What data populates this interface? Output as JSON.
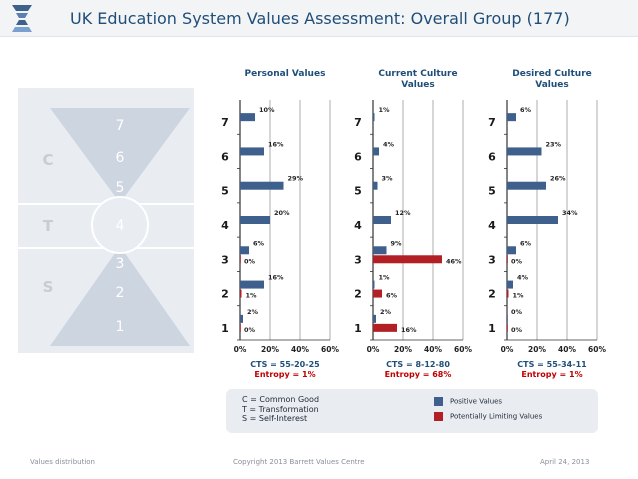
{
  "header": {
    "title": "UK Education System Values Assessment: Overall Group (177)"
  },
  "hourglass": {
    "letters": [
      {
        "text": "C"
      },
      {
        "text": "T"
      },
      {
        "text": "S"
      }
    ],
    "numbers": [
      "7",
      "6",
      "5",
      "4",
      "3",
      "2",
      "1"
    ]
  },
  "chart_data": [
    {
      "type": "bar",
      "title": "Personal Values",
      "categories": [
        "7",
        "6",
        "5",
        "4",
        "3",
        "2",
        "1"
      ],
      "series": [
        {
          "values": [
            10,
            16,
            29,
            20,
            6,
            16,
            2
          ]
        }
      ],
      "limiting": [
        null,
        null,
        null,
        null,
        0,
        1,
        0
      ],
      "xticks": [
        "0%",
        "20%",
        "40%",
        "60%"
      ],
      "xlim": [
        0,
        60
      ],
      "cts": "CTS = 55-20-25",
      "entropy": "Entropy = 1%"
    },
    {
      "type": "bar",
      "title": "Current Culture\nValues",
      "categories": [
        "7",
        "6",
        "5",
        "4",
        "3",
        "2",
        "1"
      ],
      "series": [
        {
          "values": [
            1,
            4,
            3,
            12,
            9,
            1,
            2
          ]
        }
      ],
      "limiting": [
        null,
        null,
        null,
        null,
        46,
        6,
        16
      ],
      "xticks": [
        "0%",
        "20%",
        "40%",
        "60%"
      ],
      "xlim": [
        0,
        60
      ],
      "cts": "CTS = 8-12-80",
      "entropy": "Entropy = 68%"
    },
    {
      "type": "bar",
      "title": "Desired Culture\nValues",
      "categories": [
        "7",
        "6",
        "5",
        "4",
        "3",
        "2",
        "1"
      ],
      "series": [
        {
          "values": [
            6,
            23,
            26,
            34,
            6,
            4,
            0
          ]
        }
      ],
      "limiting": [
        null,
        null,
        null,
        null,
        0,
        1,
        0
      ],
      "xticks": [
        "0%",
        "20%",
        "40%",
        "60%"
      ],
      "xlim": [
        0,
        60
      ],
      "cts": "CTS = 55-34-11",
      "entropy": "Entropy = 1%"
    }
  ],
  "legend": {
    "definitions": [
      "C = Common Good",
      "T = Transformation",
      "S = Self-Interest"
    ],
    "positive_label": "Positive Values",
    "limiting_label": "Potentially Limiting Values"
  },
  "colors": {
    "positive": "#3f5f8c",
    "limiting": "#b22026",
    "title": "#1f4e79",
    "grid": "#9a9a9a"
  },
  "footer": {
    "left": "Values distribution",
    "center": "Copyright 2013 Barrett Values Centre",
    "right": "April 24, 2013"
  }
}
